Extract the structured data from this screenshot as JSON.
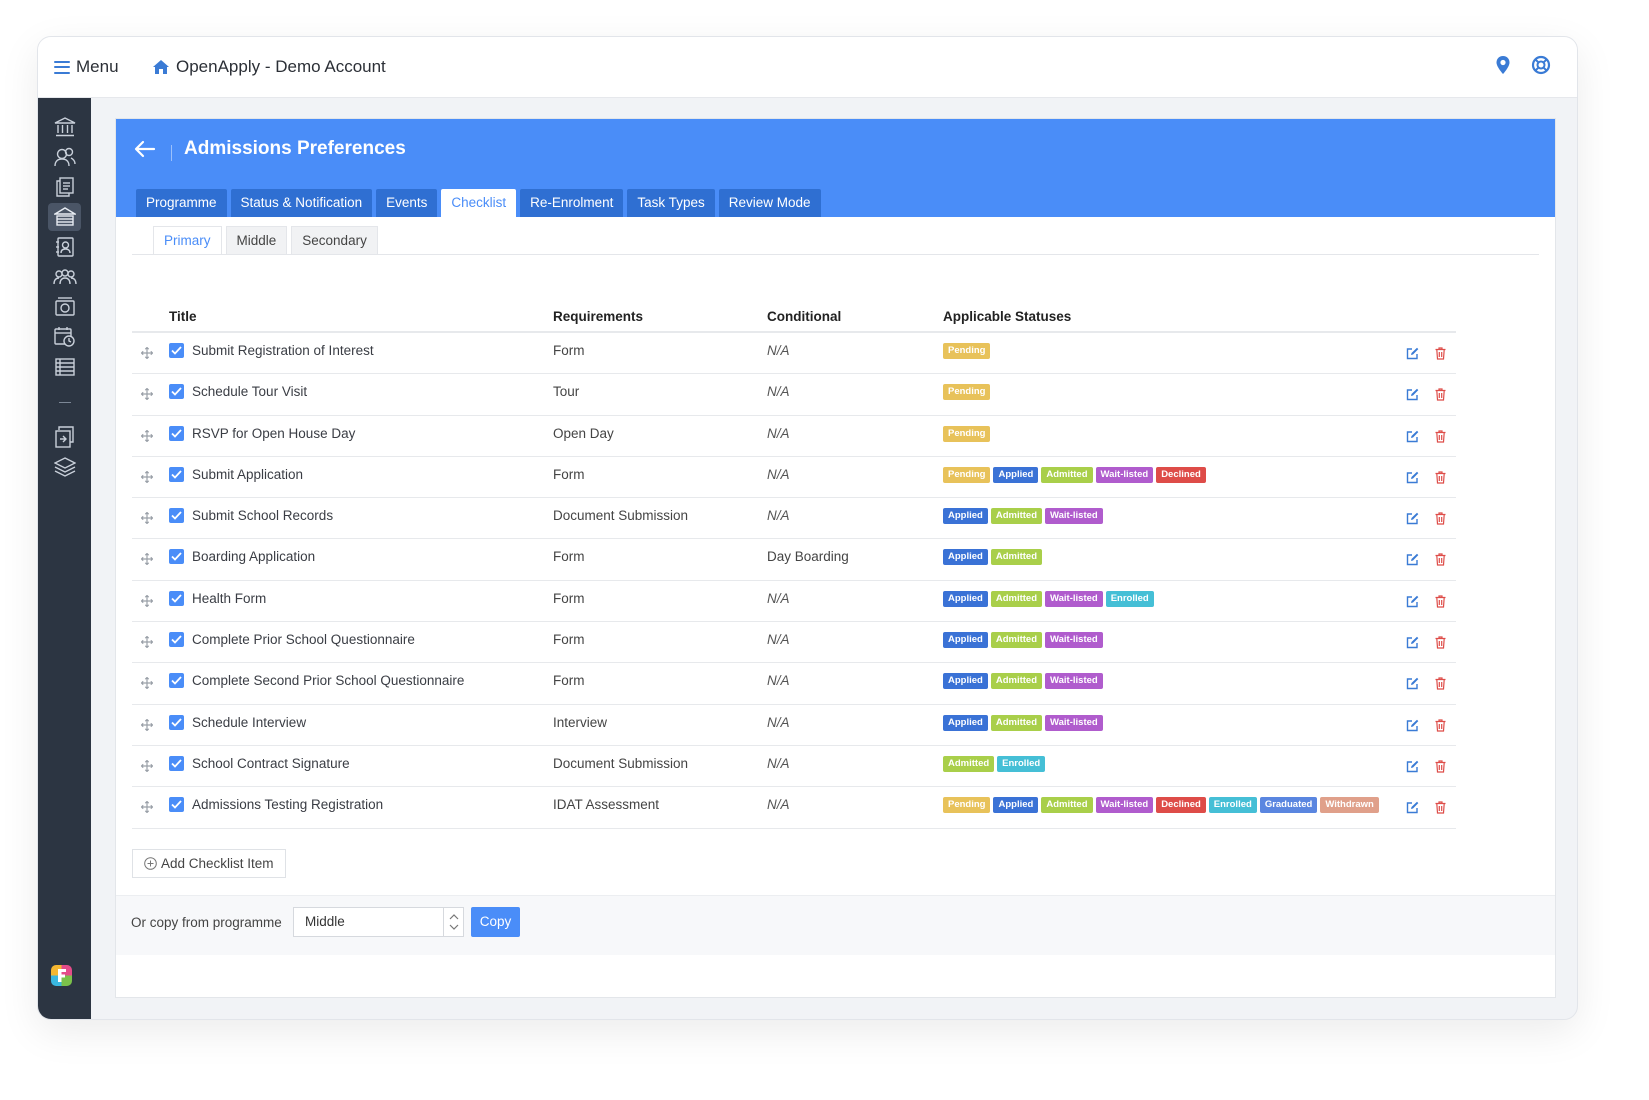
{
  "app": {
    "menu_label": "Menu",
    "title": "OpenApply - Demo Account"
  },
  "panel": {
    "title": "Admissions Preferences",
    "tabs": [
      "Programme",
      "Status & Notification",
      "Events",
      "Checklist",
      "Re-Enrolment",
      "Task Types",
      "Review Mode"
    ],
    "active_tab": "Checklist",
    "subtabs": [
      "Primary",
      "Middle",
      "Secondary"
    ],
    "active_subtab": "Primary"
  },
  "table": {
    "headers": {
      "title": "Title",
      "requirements": "Requirements",
      "conditional": "Conditional",
      "statuses": "Applicable Statuses"
    },
    "rows": [
      {
        "title": "Submit Registration of Interest",
        "requirement": "Form",
        "conditional": "N/A",
        "statuses": [
          "Pending"
        ]
      },
      {
        "title": "Schedule Tour Visit",
        "requirement": "Tour",
        "conditional": "N/A",
        "statuses": [
          "Pending"
        ]
      },
      {
        "title": "RSVP for Open House Day",
        "requirement": "Open Day",
        "conditional": "N/A",
        "statuses": [
          "Pending"
        ]
      },
      {
        "title": "Submit Application",
        "requirement": "Form",
        "conditional": "N/A",
        "statuses": [
          "Pending",
          "Applied",
          "Admitted",
          "Wait-listed",
          "Declined"
        ]
      },
      {
        "title": "Submit School Records",
        "requirement": "Document Submission",
        "conditional": "N/A",
        "statuses": [
          "Applied",
          "Admitted",
          "Wait-listed"
        ]
      },
      {
        "title": "Boarding Application",
        "requirement": "Form",
        "conditional": "Day Boarding",
        "statuses": [
          "Applied",
          "Admitted"
        ]
      },
      {
        "title": "Health Form",
        "requirement": "Form",
        "conditional": "N/A",
        "statuses": [
          "Applied",
          "Admitted",
          "Wait-listed",
          "Enrolled"
        ]
      },
      {
        "title": "Complete Prior School Questionnaire",
        "requirement": "Form",
        "conditional": "N/A",
        "statuses": [
          "Applied",
          "Admitted",
          "Wait-listed"
        ]
      },
      {
        "title": "Complete Second Prior School Questionnaire",
        "requirement": "Form",
        "conditional": "N/A",
        "statuses": [
          "Applied",
          "Admitted",
          "Wait-listed"
        ]
      },
      {
        "title": "Schedule Interview",
        "requirement": "Interview",
        "conditional": "N/A",
        "statuses": [
          "Applied",
          "Admitted",
          "Wait-listed"
        ]
      },
      {
        "title": "School Contract Signature",
        "requirement": "Document Submission",
        "conditional": "N/A",
        "statuses": [
          "Admitted",
          "Enrolled"
        ]
      },
      {
        "title": "Admissions Testing Registration",
        "requirement": "IDAT Assessment",
        "conditional": "N/A",
        "statuses": [
          "Pending",
          "Applied",
          "Admitted",
          "Wait-listed",
          "Declined",
          "Enrolled",
          "Graduated",
          "Withdrawn"
        ]
      }
    ]
  },
  "status_colors": {
    "Pending": "#e8c25a",
    "Applied": "#3a72d6",
    "Admitted": "#a9cf4a",
    "Wait-listed": "#b05ccd",
    "Declined": "#de4c48",
    "Enrolled": "#45bfd6",
    "Graduated": "#5a86e0",
    "Withdrawn": "#e0a08a"
  },
  "actions": {
    "add_item": "Add Checklist Item",
    "copy_label": "Or copy from programme",
    "copy_select_value": "Middle",
    "copy_button": "Copy"
  },
  "colors": {
    "accent": "#4a8df8",
    "sidebar": "#2c3542"
  }
}
